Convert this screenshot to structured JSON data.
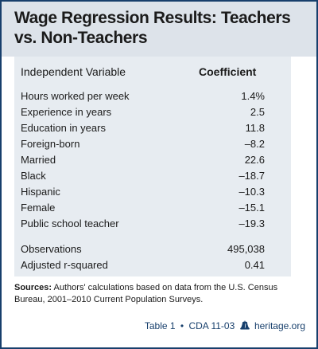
{
  "title": "Wage Regression Results: Teachers vs. Non-Teachers",
  "table": {
    "col_variable": "Independent Variable",
    "col_coefficient": "Coefficient",
    "rows": [
      {
        "label": "Hours worked per week",
        "value": "1.4%"
      },
      {
        "label": "Experience in years",
        "value": "2.5"
      },
      {
        "label": "Education in years",
        "value": "11.8"
      },
      {
        "label": "Foreign-born",
        "value": "–8.2"
      },
      {
        "label": "Married",
        "value": "22.6"
      },
      {
        "label": "Black",
        "value": "–18.7"
      },
      {
        "label": "Hispanic",
        "value": "–10.3"
      },
      {
        "label": "Female",
        "value": "–15.1"
      },
      {
        "label": "Public school teacher",
        "value": "–19.3"
      },
      {
        "label": "Observations",
        "value": "495,038"
      },
      {
        "label": "Adjusted r-squared",
        "value": "0.41"
      }
    ]
  },
  "sources": {
    "label": "Sources:",
    "text": "Authors' calculations based on data from the U.S. Census Bureau, 2001–2010 Current Population Surveys."
  },
  "footer": {
    "table_ref": "Table 1",
    "bullet": "•",
    "doc_ref": "CDA 11-03",
    "site": "heritage.org"
  },
  "colors": {
    "border": "#173f6c",
    "header_bg": "#dde3ea",
    "panel_bg": "#e7ecf1",
    "text": "#1b1b1b"
  }
}
